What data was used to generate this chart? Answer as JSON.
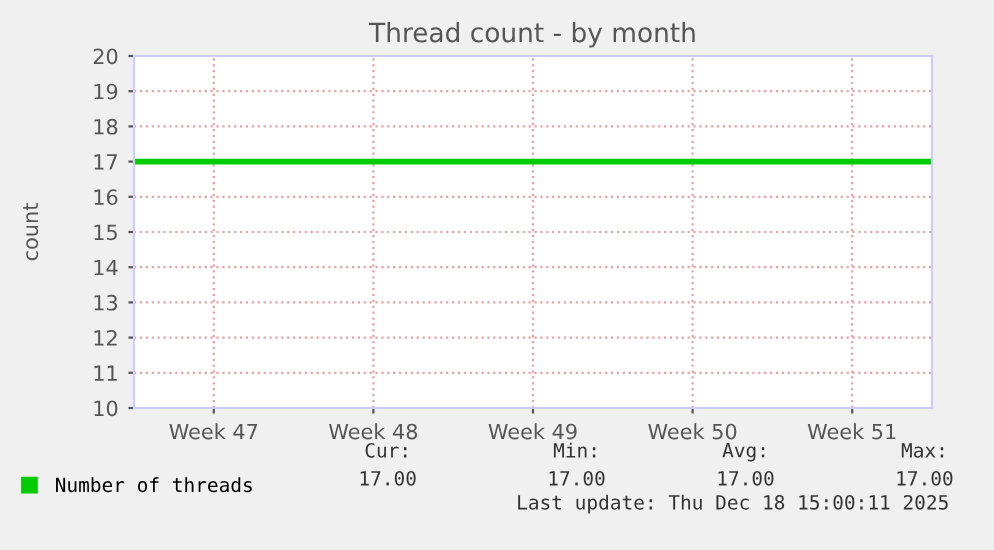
{
  "chart_data": {
    "type": "line",
    "title": "Thread count - by month",
    "ylabel": "count",
    "categories": [
      null,
      "Week 47",
      null,
      "Week 48",
      null,
      "Week 49",
      null,
      "Week 50",
      null,
      "Week 51",
      null
    ],
    "series": [
      {
        "name": "Number of threads",
        "color": "#00cc00",
        "values": [
          17,
          17,
          17,
          17,
          17,
          17,
          17,
          17,
          17,
          17,
          17
        ]
      }
    ],
    "ylim": [
      10,
      20
    ],
    "yticks": [
      10,
      11,
      12,
      13,
      14,
      15,
      16,
      17,
      18,
      19,
      20
    ],
    "grid": true,
    "legend": "bottom",
    "marker": "none",
    "line_style": "solid",
    "annotations": [
      "Cur:",
      "Min:",
      "Avg:",
      "Max:",
      "17.00",
      "17.00",
      "17.00",
      "17.00",
      "Last update: Thu Dec 18 15:00:11 2025"
    ]
  }
}
